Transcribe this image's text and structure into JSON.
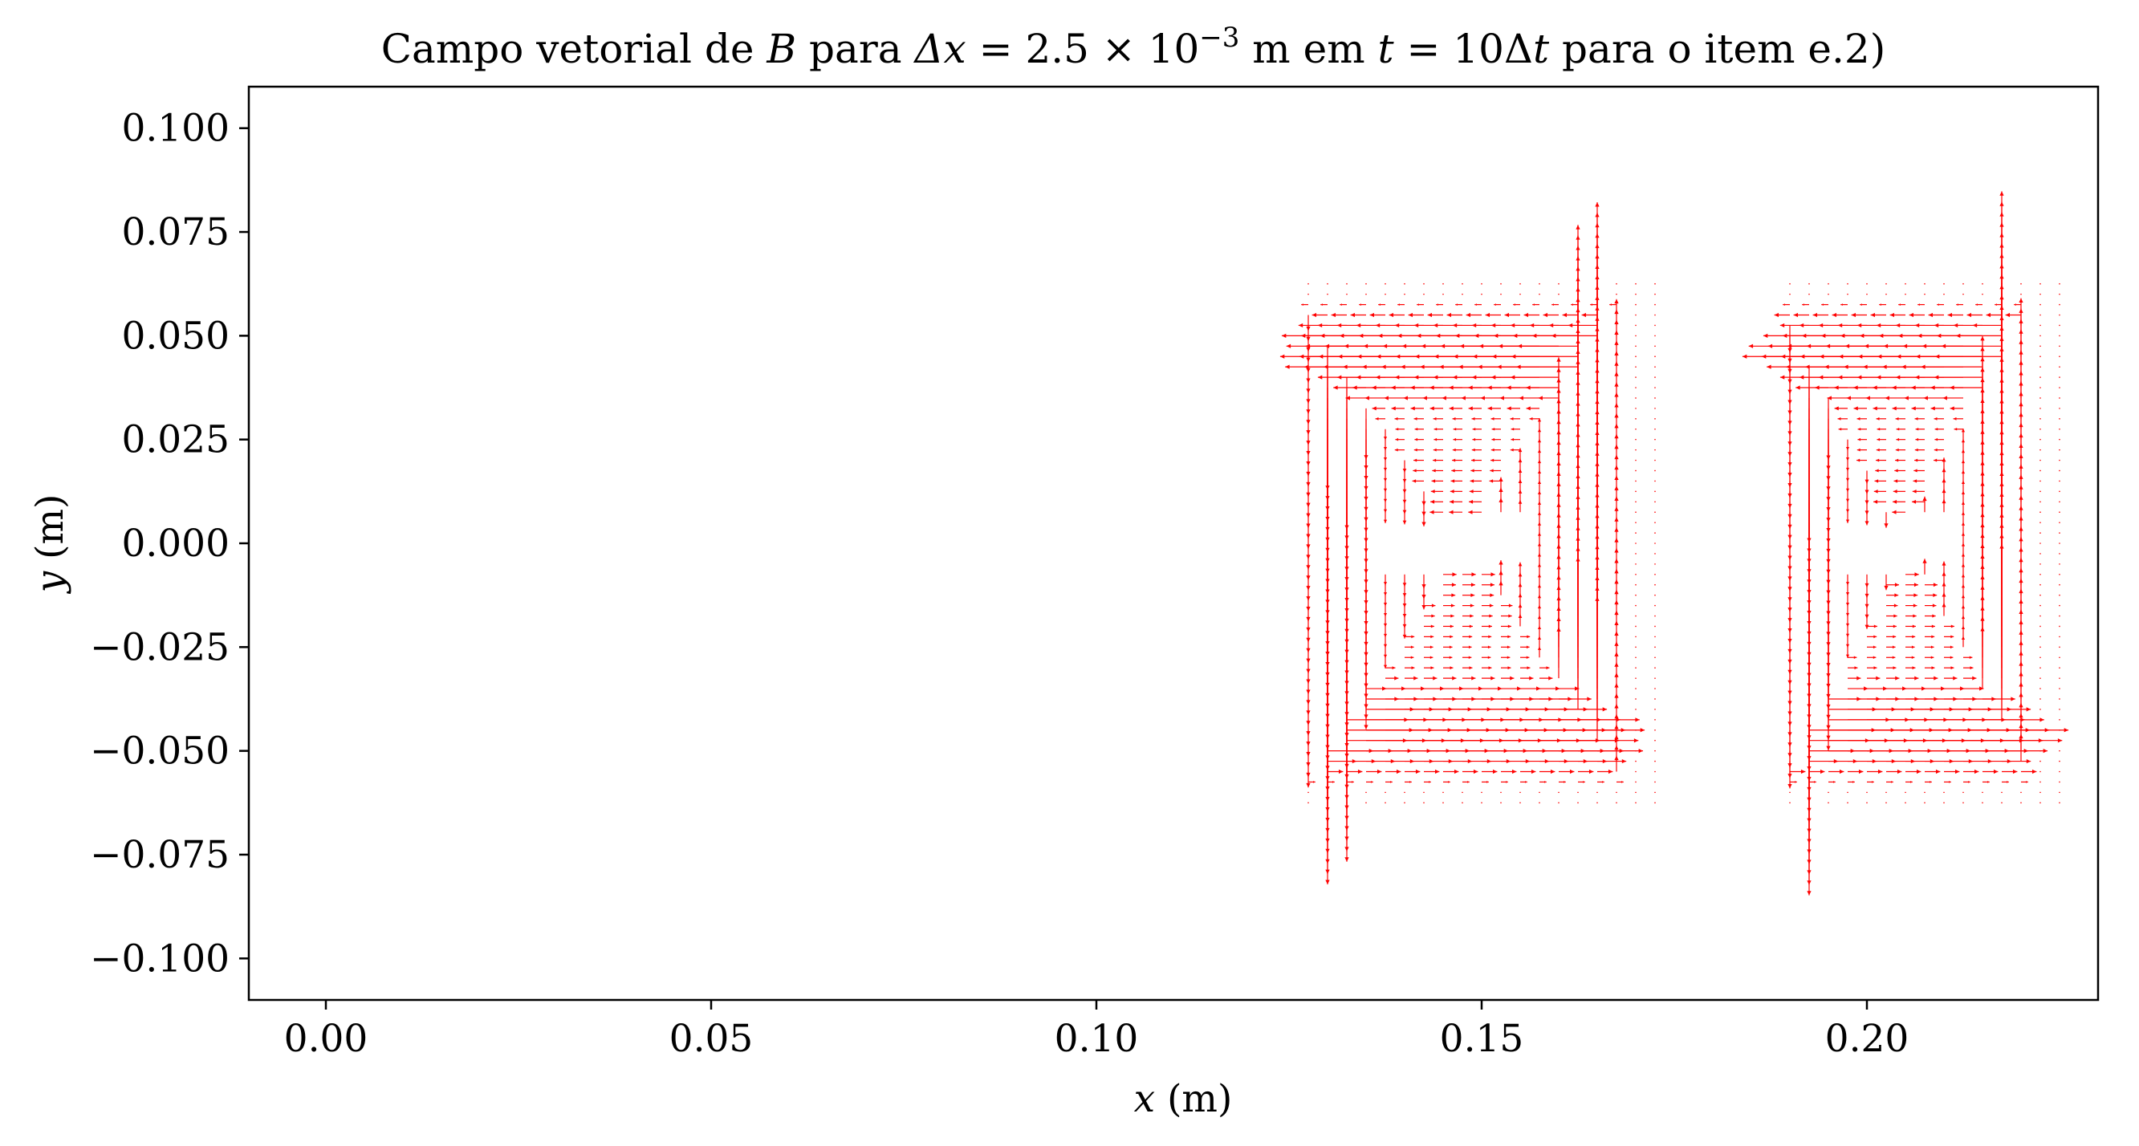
{
  "chart_data": {
    "type": "quiver",
    "title": {
      "prefix": "Campo vetorial de ",
      "var_b": "B",
      "mid1": " para ",
      "delta_x": "Δx",
      "eq1": " = 2.5 × 10",
      "exponent": "−3",
      "mid2": " m em ",
      "var_t": "t",
      "eq2": " = 10Δ",
      "var_t2": "t",
      "suffix": " para o item e.2)"
    },
    "xlabel": {
      "var": "x",
      "unit": " (m)"
    },
    "ylabel": {
      "var": "y",
      "unit": " (m)"
    },
    "xlim": [
      -0.01,
      0.23
    ],
    "ylim": [
      -0.11,
      0.11
    ],
    "x_ticks": [
      {
        "value": 0.0,
        "label": "0.00"
      },
      {
        "value": 0.05,
        "label": "0.05"
      },
      {
        "value": 0.1,
        "label": "0.10"
      },
      {
        "value": 0.15,
        "label": "0.15"
      },
      {
        "value": 0.2,
        "label": "0.20"
      }
    ],
    "y_ticks": [
      {
        "value": 0.1,
        "label": "0.100"
      },
      {
        "value": 0.075,
        "label": "0.075"
      },
      {
        "value": 0.05,
        "label": "0.050"
      },
      {
        "value": 0.025,
        "label": "0.025"
      },
      {
        "value": 0.0,
        "label": "0.000"
      },
      {
        "value": -0.025,
        "label": "−0.025"
      },
      {
        "value": -0.05,
        "label": "−0.050"
      },
      {
        "value": -0.075,
        "label": "−0.075"
      },
      {
        "value": -0.1,
        "label": "−0.100"
      }
    ],
    "grid": false,
    "arrow_color": "#ff0000",
    "grid_step": 0.0025,
    "field_regions": [
      {
        "x_range": [
          0.1275,
          0.1725
        ],
        "y_range": [
          -0.0625,
          0.0625
        ],
        "center_x": 0.1475,
        "center_y": 0.0,
        "hole_y_half": 0.006,
        "core_x": [
          0.1375,
          0.1575
        ]
      },
      {
        "x_range": [
          0.19,
          0.225
        ],
        "y_range": [
          -0.0625,
          0.0625
        ],
        "center_x": 0.205,
        "center_y": 0.0,
        "hole_y_half": 0.006,
        "core_x": [
          0.1975,
          0.2125
        ]
      }
    ]
  }
}
